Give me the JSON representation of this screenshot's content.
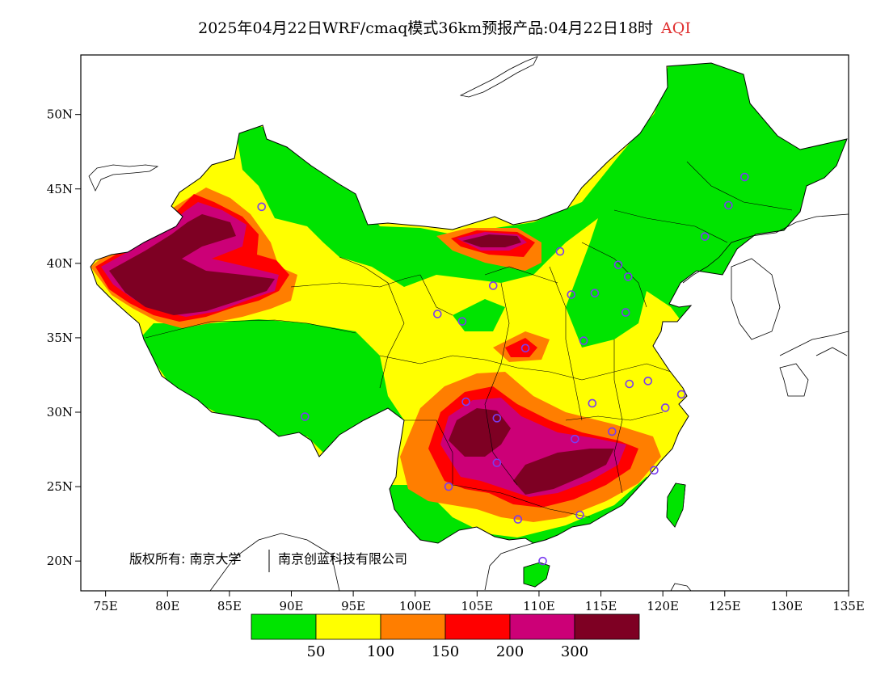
{
  "title": {
    "main": "2025年04月22日WRF/cmaq模式36km预报产品:04月22日18时",
    "variable": "AQI"
  },
  "copyright": {
    "prefix": "版权所有:",
    "org1": "南京大学",
    "org2": "南京创蓝科技有限公司"
  },
  "axes": {
    "x_ticks": [
      "75E",
      "80E",
      "85E",
      "90E",
      "95E",
      "100E",
      "105E",
      "110E",
      "115E",
      "120E",
      "125E",
      "130E",
      "135E"
    ],
    "y_ticks": [
      "20N",
      "25N",
      "30N",
      "35N",
      "40N",
      "45N",
      "50N"
    ]
  },
  "legend": {
    "thresholds": [
      "50",
      "100",
      "150",
      "200",
      "300"
    ],
    "colors": [
      "#00e400",
      "#ffff00",
      "#ff7e00",
      "#ff0000",
      "#cc0077",
      "#7e0023"
    ]
  },
  "stations": [
    [
      87.6,
      43.8
    ],
    [
      91.1,
      29.7
    ],
    [
      101.8,
      36.6
    ],
    [
      103.8,
      36.1
    ],
    [
      106.3,
      38.5
    ],
    [
      104.1,
      30.7
    ],
    [
      102.7,
      25.0
    ],
    [
      106.6,
      26.6
    ],
    [
      106.6,
      29.6
    ],
    [
      108.9,
      34.3
    ],
    [
      108.3,
      22.8
    ],
    [
      110.3,
      20.0
    ],
    [
      112.6,
      37.9
    ],
    [
      111.7,
      40.8
    ],
    [
      113.3,
      23.1
    ],
    [
      112.9,
      28.2
    ],
    [
      114.3,
      30.6
    ],
    [
      113.6,
      34.8
    ],
    [
      114.5,
      38.0
    ],
    [
      116.4,
      39.9
    ],
    [
      117.2,
      39.1
    ],
    [
      117.0,
      36.7
    ],
    [
      117.3,
      31.9
    ],
    [
      118.8,
      32.1
    ],
    [
      120.2,
      30.3
    ],
    [
      121.5,
      31.2
    ],
    [
      119.3,
      26.1
    ],
    [
      115.9,
      28.7
    ],
    [
      123.4,
      41.8
    ],
    [
      125.3,
      43.9
    ],
    [
      126.6,
      45.8
    ]
  ]
}
